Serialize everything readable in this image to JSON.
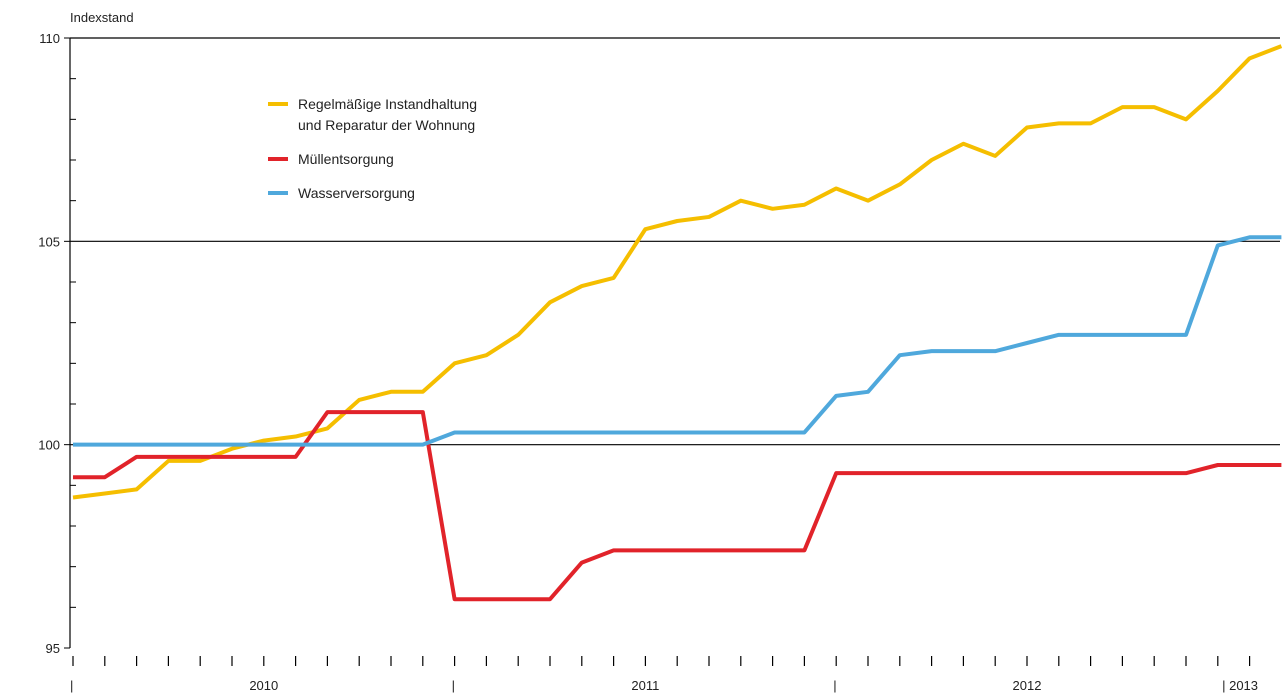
{
  "chart_data": {
    "type": "line",
    "ylabel": "Indexstand",
    "ylim": [
      95,
      110
    ],
    "y_ticks": [
      95,
      100,
      105,
      110
    ],
    "y_tick_labels": [
      "95",
      "100",
      "105",
      "110"
    ],
    "x_start": "2010-01",
    "x_months": 38,
    "year_labels": [
      {
        "label": "2010",
        "month_index": 6
      },
      {
        "label": "2011",
        "month_index": 18
      },
      {
        "label": "2012",
        "month_index": 30
      },
      {
        "label": "| 2013",
        "month_index": 36.7
      }
    ],
    "year_markers": [
      {
        "label": "|",
        "month_index": 0
      },
      {
        "label": "|",
        "month_index": 12
      },
      {
        "label": "|",
        "month_index": 24
      }
    ],
    "grid": "horizontal lines at 100 and 105",
    "legend_position": "top-left",
    "series": [
      {
        "name": "Regelmäßige Instandhaltung und Reparatur der Wohnung",
        "legend_lines": [
          "Regelmäßige Instandhaltung",
          "und Reparatur der Wohnung"
        ],
        "color": "#f5be00",
        "values": [
          98.7,
          98.8,
          98.9,
          99.6,
          99.6,
          99.9,
          100.1,
          100.2,
          100.4,
          101.1,
          101.3,
          101.3,
          102.0,
          102.2,
          102.7,
          103.5,
          103.9,
          104.1,
          105.3,
          105.5,
          105.6,
          106.0,
          105.8,
          105.9,
          106.3,
          106.0,
          106.4,
          107.0,
          107.4,
          107.1,
          107.8,
          107.9,
          107.9,
          108.3,
          108.3,
          108.0,
          108.7,
          109.5,
          109.8
        ]
      },
      {
        "name": "Müllentsorgung",
        "legend_lines": [
          "Müllentsorgung"
        ],
        "color": "#e1232a",
        "values": [
          99.2,
          99.2,
          99.7,
          99.7,
          99.7,
          99.7,
          99.7,
          99.7,
          100.8,
          100.8,
          100.8,
          100.8,
          96.2,
          96.2,
          96.2,
          96.2,
          97.1,
          97.4,
          97.4,
          97.4,
          97.4,
          97.4,
          97.4,
          97.4,
          99.3,
          99.3,
          99.3,
          99.3,
          99.3,
          99.3,
          99.3,
          99.3,
          99.3,
          99.3,
          99.3,
          99.3,
          99.5,
          99.5,
          99.5
        ]
      },
      {
        "name": "Wasserversorgung",
        "legend_lines": [
          "Wasserversorgung"
        ],
        "color": "#4fa8dc",
        "values": [
          100.0,
          100.0,
          100.0,
          100.0,
          100.0,
          100.0,
          100.0,
          100.0,
          100.0,
          100.0,
          100.0,
          100.0,
          100.3,
          100.3,
          100.3,
          100.3,
          100.3,
          100.3,
          100.3,
          100.3,
          100.3,
          100.3,
          100.3,
          100.3,
          101.2,
          101.3,
          102.2,
          102.3,
          102.3,
          102.3,
          102.5,
          102.7,
          102.7,
          102.7,
          102.7,
          102.7,
          104.9,
          105.1,
          105.1
        ]
      }
    ]
  }
}
